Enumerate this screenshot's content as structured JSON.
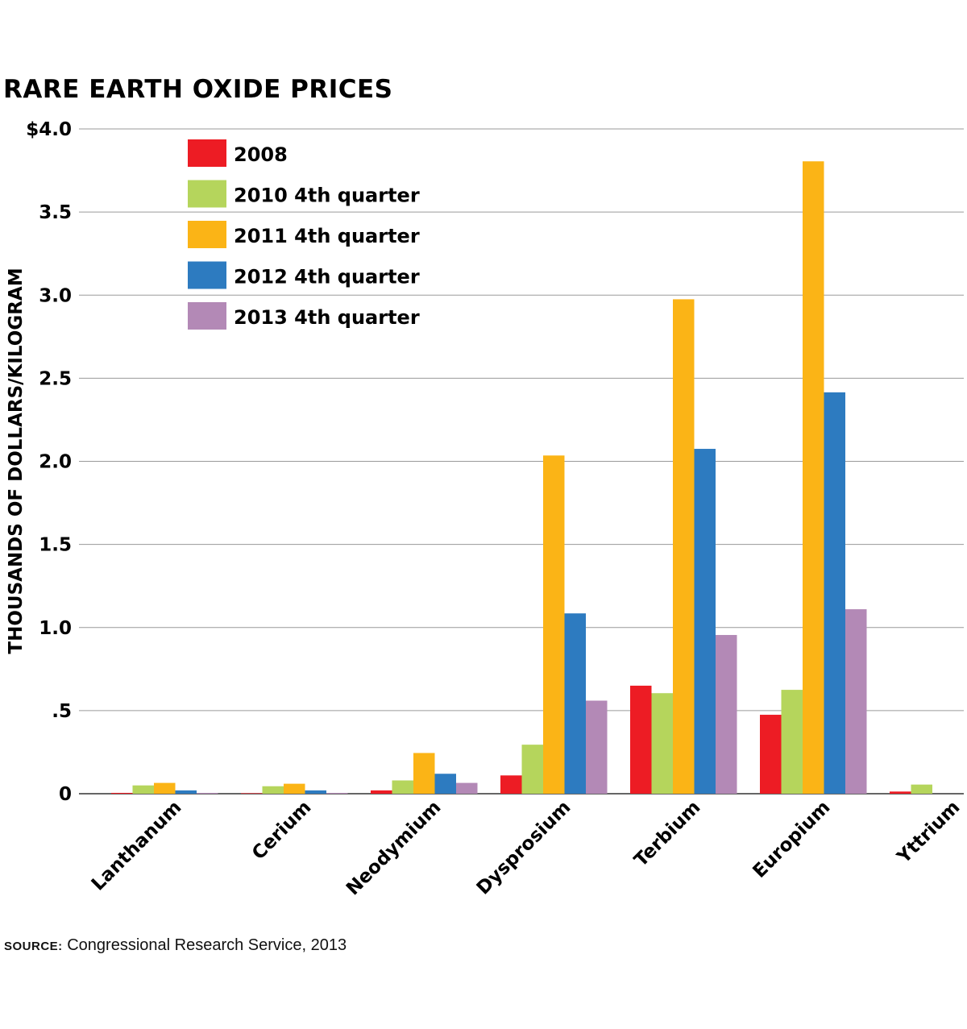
{
  "chart_data": {
    "type": "bar",
    "title": "RARE EARTH OXIDE PRICES",
    "ylabel": "THOUSANDS OF DOLLARS/KILOGRAM",
    "xlabel": "",
    "ylim": [
      0,
      4.0
    ],
    "yticks": [
      {
        "value": 0,
        "label": "0"
      },
      {
        "value": 0.5,
        "label": ".5"
      },
      {
        "value": 1.0,
        "label": "1.0"
      },
      {
        "value": 1.5,
        "label": "1.5"
      },
      {
        "value": 2.0,
        "label": "2.0"
      },
      {
        "value": 2.5,
        "label": "2.5"
      },
      {
        "value": 3.0,
        "label": "3.0"
      },
      {
        "value": 3.5,
        "label": "3.5"
      },
      {
        "value": 4.0,
        "label": "$4.0"
      }
    ],
    "grid": true,
    "legend_position": "top-left",
    "categories": [
      "Lanthanum",
      "Cerium",
      "Neodymium",
      "Dysprosium",
      "Terbium",
      "Europium",
      "Yttrium"
    ],
    "series": [
      {
        "name": "2008",
        "color": "#ed1c24",
        "values": [
          0.005,
          0.003,
          0.02,
          0.11,
          0.65,
          0.475,
          0.013
        ]
      },
      {
        "name": "2010 4th quarter",
        "color": "#b5d55c",
        "values": [
          0.05,
          0.045,
          0.08,
          0.295,
          0.605,
          0.625,
          0.055
        ]
      },
      {
        "name": "2011 4th quarter",
        "color": "#fbb416",
        "values": [
          0.065,
          0.06,
          0.245,
          2.035,
          2.975,
          3.805,
          0
        ]
      },
      {
        "name": "2012 4th quarter",
        "color": "#2d7bc0",
        "values": [
          0.02,
          0.02,
          0.12,
          1.085,
          2.075,
          2.415,
          0
        ]
      },
      {
        "name": "2013 4th quarter",
        "color": "#b389b6",
        "values": [
          0.005,
          0.005,
          0.065,
          0.56,
          0.955,
          1.11,
          0
        ]
      }
    ]
  },
  "source": {
    "label": "SOURCE:",
    "text": "Congressional Research Service, 2013"
  }
}
